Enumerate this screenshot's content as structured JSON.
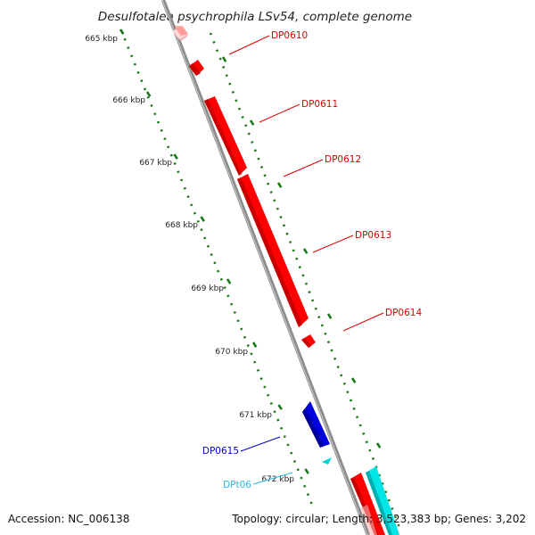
{
  "title": "Desulfotalea psychrophila LSv54, complete genome",
  "footer": {
    "accession": "Accession: NC_006138",
    "summary": "Topology: circular; Length: 3,523,383 bp; Genes: 3,202"
  },
  "colors": {
    "forward_gene": "#ff0000",
    "reverse_gene": "#0000dd",
    "trna": "#00e5e5",
    "backbone": "#8c8c8c",
    "ticks": "#1a7a1a",
    "leader_forward": "#dd0000",
    "leader_reverse": "#0000cc",
    "leader_trna": "#29b6e6"
  },
  "ticks": [
    {
      "label": "665 kbp"
    },
    {
      "label": "666 kbp"
    },
    {
      "label": "667 kbp"
    },
    {
      "label": "668 kbp"
    },
    {
      "label": "669 kbp"
    },
    {
      "label": "670 kbp"
    },
    {
      "label": "671 kbp"
    },
    {
      "label": "672 kbp"
    }
  ],
  "genes": [
    {
      "id": "DP0610",
      "strand": "forward"
    },
    {
      "id": "DP0611",
      "strand": "forward"
    },
    {
      "id": "DP0612",
      "strand": "forward"
    },
    {
      "id": "DP0613",
      "strand": "forward"
    },
    {
      "id": "DP0614",
      "strand": "forward"
    },
    {
      "id": "DP0615",
      "strand": "reverse"
    },
    {
      "id": "DPt06",
      "strand": "reverse",
      "type": "tRNA"
    }
  ]
}
